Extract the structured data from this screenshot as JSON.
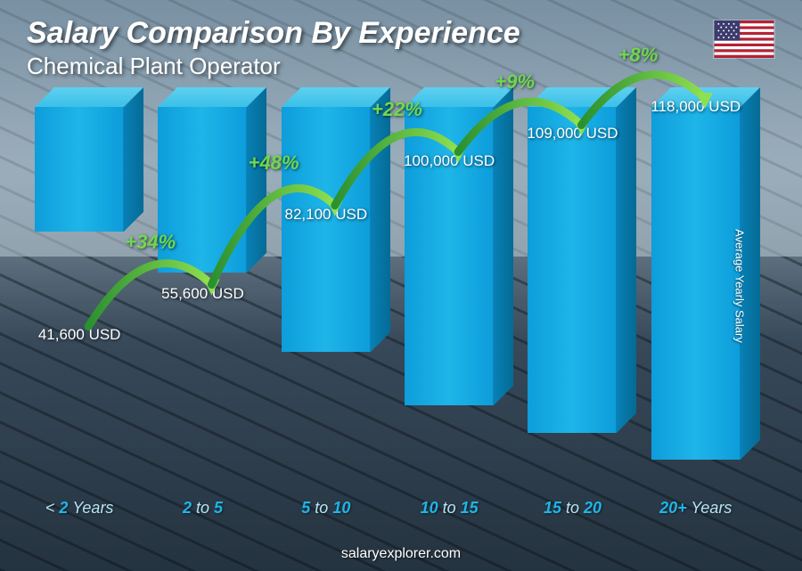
{
  "header": {
    "title": "Salary Comparison By Experience",
    "subtitle": "Chemical Plant Operator",
    "flag_country": "United States"
  },
  "yaxis_label": "Average Yearly Salary",
  "footer": "salaryexplorer.com",
  "chart": {
    "type": "bar",
    "currency": "USD",
    "bar_color_front": "#1eb5e8",
    "bar_color_top": "#5dd0f0",
    "bar_color_side": "#0880b5",
    "pct_color": "#6fd850",
    "arc_color_start": "#2a9030",
    "arc_color_end": "#8fe050",
    "text_color": "#ffffff",
    "xlabel_color": "#1eb5e8",
    "background_tone": "#4a5a62",
    "value_fontsize": 17,
    "xlabel_fontsize": 18,
    "title_fontsize": 34,
    "max_value": 130000,
    "bars": [
      {
        "xlabel_prefix": "<",
        "xlabel_main": " 2 ",
        "xlabel_suffix": "Years",
        "value": 41600,
        "value_label": "41,600 USD",
        "pct_from_prev": null
      },
      {
        "xlabel_prefix": "",
        "xlabel_main": "2",
        "xlabel_mid": " to ",
        "xlabel_main2": "5",
        "value": 55600,
        "value_label": "55,600 USD",
        "pct_from_prev": "+34%"
      },
      {
        "xlabel_prefix": "",
        "xlabel_main": "5",
        "xlabel_mid": " to ",
        "xlabel_main2": "10",
        "value": 82100,
        "value_label": "82,100 USD",
        "pct_from_prev": "+48%"
      },
      {
        "xlabel_prefix": "",
        "xlabel_main": "10",
        "xlabel_mid": " to ",
        "xlabel_main2": "15",
        "value": 100000,
        "value_label": "100,000 USD",
        "pct_from_prev": "+22%"
      },
      {
        "xlabel_prefix": "",
        "xlabel_main": "15",
        "xlabel_mid": " to ",
        "xlabel_main2": "20",
        "value": 109000,
        "value_label": "109,000 USD",
        "pct_from_prev": "+9%"
      },
      {
        "xlabel_prefix": "",
        "xlabel_main": "20+",
        "xlabel_mid": " ",
        "xlabel_main2": "",
        "xlabel_suffix": "Years",
        "value": 118000,
        "value_label": "118,000 USD",
        "pct_from_prev": "+8%"
      }
    ]
  }
}
